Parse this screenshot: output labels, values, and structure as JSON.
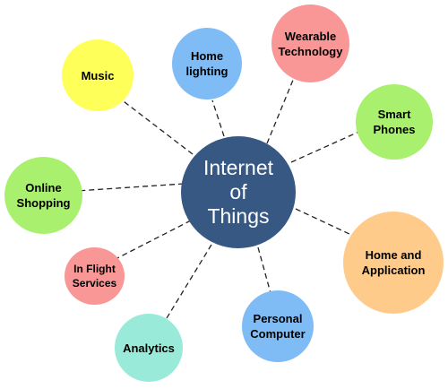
{
  "diagram": {
    "center": {
      "label": "Internet\nof\nThings",
      "color": "#365883"
    },
    "nodes": [
      {
        "id": "music",
        "label": "Music",
        "color": "#ffff5a"
      },
      {
        "id": "home-lighting",
        "label": "Home\nlighting",
        "color": "#7fbcf6"
      },
      {
        "id": "wearable-technology",
        "label": "Wearable\nTechnology",
        "color": "#f99797"
      },
      {
        "id": "smart-phones",
        "label": "Smart\nPhones",
        "color": "#a8f06d"
      },
      {
        "id": "online-shopping",
        "label": "Online\nShopping",
        "color": "#a8f06d"
      },
      {
        "id": "home-and-application",
        "label": "Home and\nApplication",
        "color": "#fecb8b"
      },
      {
        "id": "in-flight-services",
        "label": "In Flight\nServices",
        "color": "#f99797"
      },
      {
        "id": "personal-computer",
        "label": "Personal\nComputer",
        "color": "#7fbcf6"
      },
      {
        "id": "analytics",
        "label": "Analytics",
        "color": "#9aeada"
      }
    ]
  }
}
